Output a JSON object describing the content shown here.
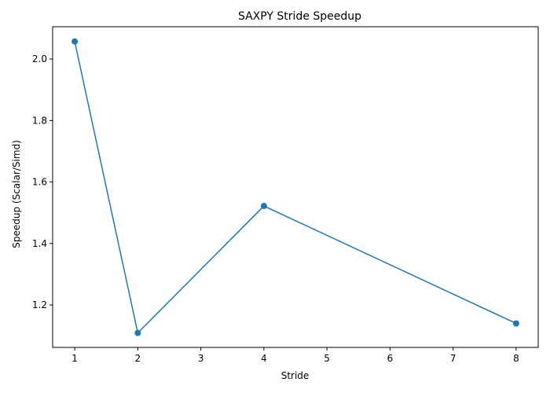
{
  "chart_data": {
    "type": "line",
    "title": "SAXPY Stride Speedup",
    "xlabel": "Stride",
    "ylabel": "Speedup (Scalar/Simd)",
    "x_ticks": [
      1,
      2,
      3,
      4,
      5,
      6,
      7,
      8
    ],
    "y_ticks": [
      1.2,
      1.4,
      1.6,
      1.8,
      2.0
    ],
    "xlim": [
      0.65,
      8.35
    ],
    "ylim": [
      1.062,
      2.105
    ],
    "grid": false,
    "series": [
      {
        "color": "#1f77b4",
        "marker": "circle",
        "x": [
          1,
          2,
          4,
          8
        ],
        "y": [
          2.057,
          1.109,
          1.522,
          1.14
        ]
      }
    ]
  }
}
